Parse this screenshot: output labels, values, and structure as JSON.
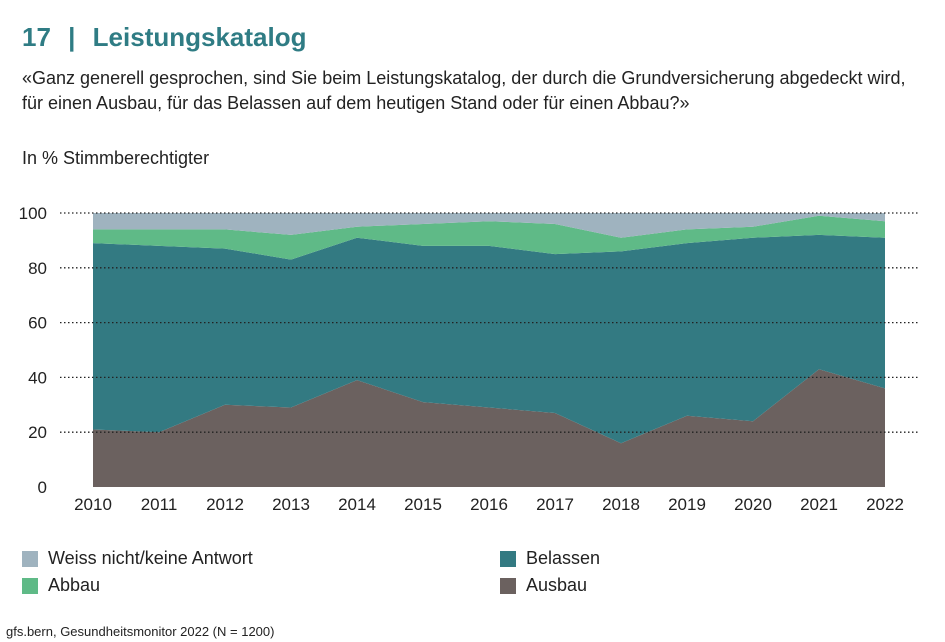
{
  "header": {
    "number": "17",
    "separator": "|",
    "title": "Leistungskatalog",
    "question": "«Ganz generell gesprochen, sind Sie beim Leistungskatalog, der durch die Grundversicherung abgedeckt wird, für einen Ausbau, für das Belassen auf dem heutigen Stand oder für einen Abbau?»",
    "unit": "In % Stimmberechtigter"
  },
  "footer": {
    "source": "gfs.bern, Gesundheitsmonitor 2022 (N = 1200)"
  },
  "chart_data": {
    "type": "area",
    "stacked": true,
    "x": [
      "2010",
      "2011",
      "2012",
      "2013",
      "2014",
      "2015",
      "2016",
      "2017",
      "2018",
      "2019",
      "2020",
      "2021",
      "2022"
    ],
    "ylim": [
      0,
      100
    ],
    "yticks": [
      0,
      20,
      40,
      60,
      80,
      100
    ],
    "grid": "dotted horizontal",
    "series": [
      {
        "name": "Ausbau",
        "color": "#6b615f",
        "values": [
          21,
          20,
          30,
          29,
          39,
          31,
          29,
          27,
          16,
          26,
          24,
          43,
          36
        ]
      },
      {
        "name": "Belassen",
        "color": "#337a82",
        "values": [
          68,
          68,
          57,
          54,
          52,
          57,
          59,
          58,
          70,
          63,
          67,
          49,
          55
        ]
      },
      {
        "name": "Abbau",
        "color": "#5fba87",
        "values": [
          5,
          6,
          7,
          9,
          4,
          8,
          9,
          11,
          5,
          5,
          4,
          7,
          6
        ]
      },
      {
        "name": "Weiss nicht/keine Antwort",
        "color": "#9fb3bf",
        "values": [
          6,
          6,
          6,
          8,
          5,
          4,
          3,
          4,
          9,
          6,
          5,
          1,
          3
        ]
      }
    ],
    "legend": [
      {
        "label": "Weiss nicht/keine Antwort",
        "color": "#9fb3bf"
      },
      {
        "label": "Abbau",
        "color": "#5fba87"
      },
      {
        "label": "Belassen",
        "color": "#337a82"
      },
      {
        "label": "Ausbau",
        "color": "#6b615f"
      }
    ],
    "legend_position": "bottom"
  }
}
